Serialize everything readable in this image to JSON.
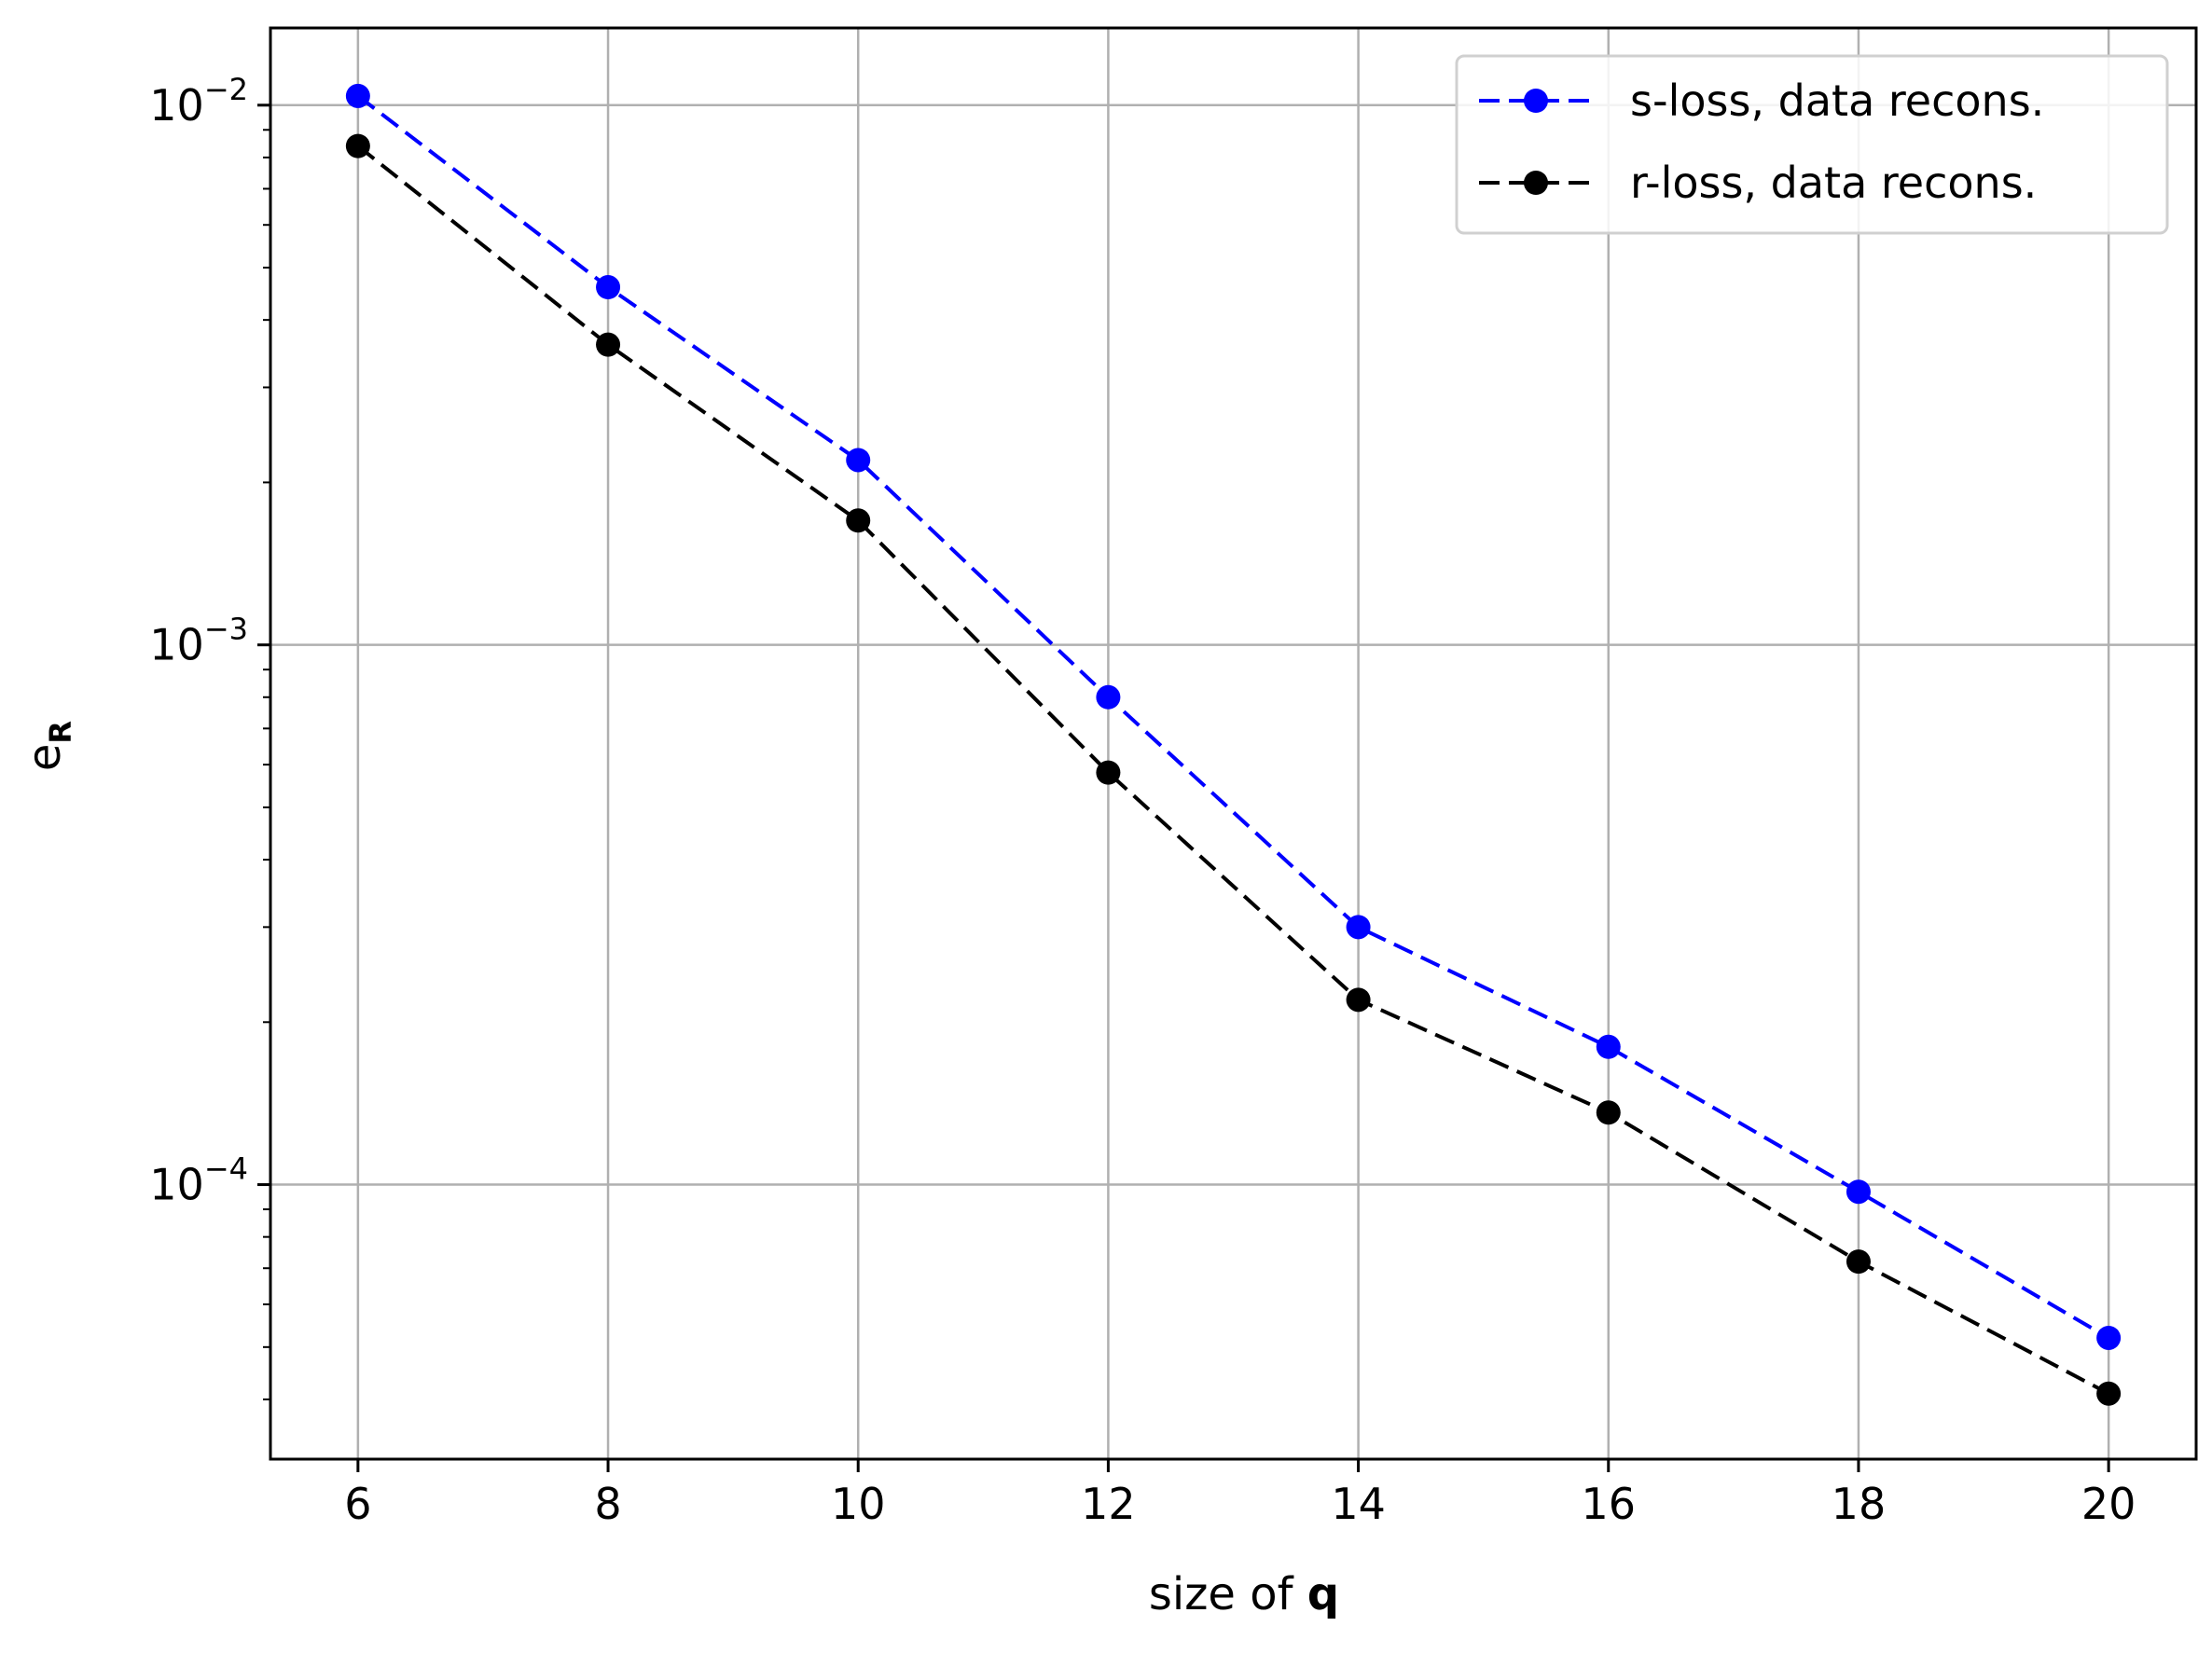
{
  "chart_data": {
    "type": "line",
    "title": "",
    "xlabel": "size of q",
    "xlabel_parts": {
      "text": "size of ",
      "bold": "q"
    },
    "ylabel": "e_R",
    "ylabel_parts": {
      "base": "e",
      "sub": "R"
    },
    "yscale": "log",
    "x": [
      6,
      8,
      10,
      12,
      14,
      16,
      18,
      20
    ],
    "xlim": [
      5.3,
      20.7
    ],
    "ylim": [
      3.1e-05,
      0.0139
    ],
    "xticks": [
      6,
      8,
      10,
      12,
      14,
      16,
      18,
      20
    ],
    "xtick_labels": [
      "6",
      "8",
      "10",
      "12",
      "14",
      "16",
      "18",
      "20"
    ],
    "yticks": [
      {
        "value": 0.01,
        "base": "10",
        "exp": "−2"
      },
      {
        "value": 0.001,
        "base": "10",
        "exp": "−3"
      },
      {
        "value": 0.0001,
        "base": "10",
        "exp": "−4"
      }
    ],
    "grid": true,
    "legend_position": "top-right",
    "series": [
      {
        "name": "s-loss, data recons.",
        "color": "#0000ff",
        "line_style": "dashed",
        "marker": "circle",
        "values": [
          0.0104,
          0.0046,
          0.0022,
          0.0008,
          0.0003,
          0.00018,
          9.7e-05,
          5.2e-05
        ]
      },
      {
        "name": "r-loss, data recons.",
        "color": "#000000",
        "line_style": "dashed",
        "marker": "circle",
        "values": [
          0.0084,
          0.0036,
          0.0017,
          0.00058,
          0.00022,
          0.000136,
          7.2e-05,
          4.1e-05
        ]
      }
    ]
  }
}
